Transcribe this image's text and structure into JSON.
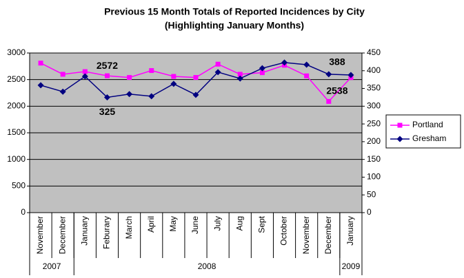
{
  "chart_data": {
    "type": "line",
    "title": "Previous 15 Month Totals of Reported Incidences by City",
    "subtitle": "(Highlighting January Months)",
    "categories": [
      "November",
      "December",
      "January",
      "Feburary",
      "March",
      "April",
      "May",
      "June",
      "July",
      "Aug",
      "Sept",
      "October",
      "November",
      "December",
      "January"
    ],
    "year_groups": [
      {
        "label": "2007",
        "count": 2
      },
      {
        "label": "2008",
        "count": 12
      },
      {
        "label": "2009",
        "count": 1
      }
    ],
    "series": [
      {
        "name": "Portland",
        "color": "#ff00ff",
        "marker": "square",
        "axis": "y",
        "values": [
          2810,
          2600,
          2650,
          2572,
          2540,
          2670,
          2560,
          2540,
          2790,
          2600,
          2630,
          2770,
          2570,
          2090,
          2538
        ],
        "value_labels": [
          null,
          null,
          null,
          "2572",
          null,
          null,
          null,
          null,
          null,
          null,
          null,
          null,
          null,
          null,
          "2538"
        ]
      },
      {
        "name": "Gresham",
        "color": "#000080",
        "marker": "diamond",
        "axis": "y2",
        "values": [
          359,
          341,
          384,
          325,
          334,
          328,
          363,
          332,
          396,
          378,
          407,
          423,
          417,
          390,
          388
        ],
        "value_labels": [
          null,
          null,
          null,
          "325",
          null,
          null,
          null,
          null,
          null,
          null,
          null,
          null,
          null,
          null,
          "388"
        ]
      }
    ],
    "ylim": [
      0,
      3000
    ],
    "yticks": [
      0,
      500,
      1000,
      1500,
      2000,
      2500,
      3000
    ],
    "y2lim": [
      0,
      450
    ],
    "y2ticks": [
      0,
      50,
      100,
      150,
      200,
      250,
      300,
      350,
      400,
      450
    ],
    "grid": true,
    "legend": "right",
    "plot_background": "#c0c0c0"
  }
}
